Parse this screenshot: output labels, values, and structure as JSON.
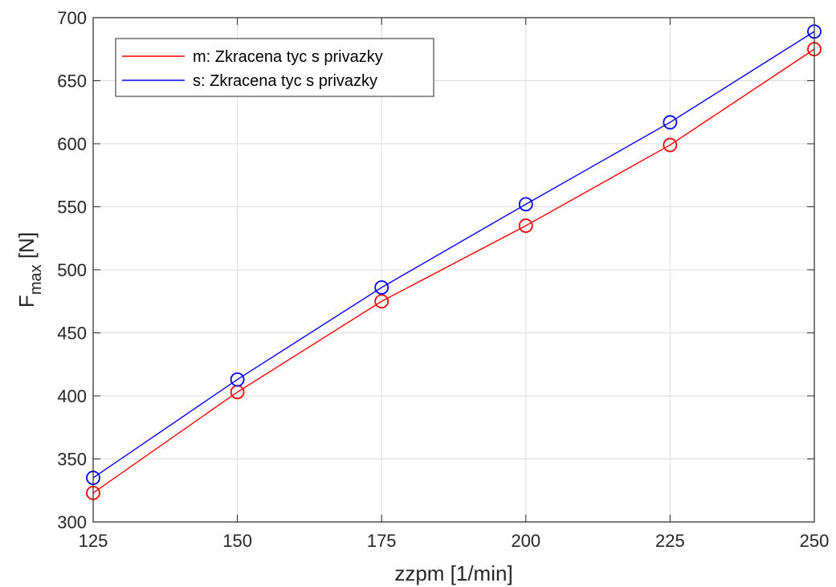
{
  "chart_data": {
    "type": "line",
    "xlabel": "zzpm [1/min]",
    "ylabel_main": "F",
    "ylabel_sub": "max",
    "ylabel_unit": " [N]",
    "xlim": [
      125,
      250
    ],
    "ylim": [
      300,
      700
    ],
    "xticks": [
      125,
      150,
      175,
      200,
      225,
      250
    ],
    "yticks": [
      300,
      350,
      400,
      450,
      500,
      550,
      600,
      650,
      700
    ],
    "grid": true,
    "legend_position": "top-left",
    "x": [
      125,
      150,
      175,
      200,
      225,
      250
    ],
    "series": [
      {
        "name": "m: Zkracena tyc s privazky",
        "color": "#ff0000",
        "marker": "circle",
        "values": [
          323,
          403,
          475,
          535,
          599,
          675
        ]
      },
      {
        "name": "s: Zkracena tyc s privazky",
        "color": "#0000ff",
        "marker": "circle",
        "values": [
          335,
          413,
          486,
          552,
          617,
          689
        ]
      }
    ]
  }
}
